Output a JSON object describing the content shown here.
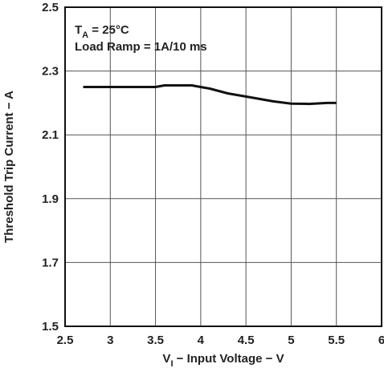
{
  "chart_data": {
    "type": "line",
    "xlabel": {
      "prefix": "V",
      "subscript": "I",
      "suffix": " − Input Voltage − V"
    },
    "ylabel": "Threshold Trip Current − A",
    "xlim": [
      2.5,
      6
    ],
    "ylim": [
      1.5,
      2.5
    ],
    "x_ticks": [
      2.5,
      3,
      3.5,
      4,
      4.5,
      5,
      5.5,
      6
    ],
    "y_ticks": [
      1.5,
      1.7,
      1.9,
      2.1,
      2.3,
      2.5
    ],
    "x_tick_labels": [
      "2.5",
      "3",
      "3.5",
      "4",
      "4.5",
      "5",
      "5.5",
      "6"
    ],
    "y_tick_labels": [
      "1.5",
      "1.7",
      "1.9",
      "2.1",
      "2.3",
      "2.5"
    ],
    "grid": true,
    "annotations": {
      "line1_prefix": "T",
      "line1_subscript": "A",
      "line1_suffix": " = 25°C",
      "line2": "Load Ramp = 1A/10 ms"
    },
    "series": [
      {
        "x": [
          2.7,
          3.0,
          3.5,
          3.6,
          3.9,
          4.1,
          4.3,
          4.6,
          4.8,
          5.0,
          5.2,
          5.4,
          5.5
        ],
        "y": [
          2.25,
          2.25,
          2.25,
          2.255,
          2.255,
          2.245,
          2.23,
          2.215,
          2.205,
          2.198,
          2.197,
          2.2,
          2.2
        ],
        "color": "#111111"
      }
    ]
  }
}
